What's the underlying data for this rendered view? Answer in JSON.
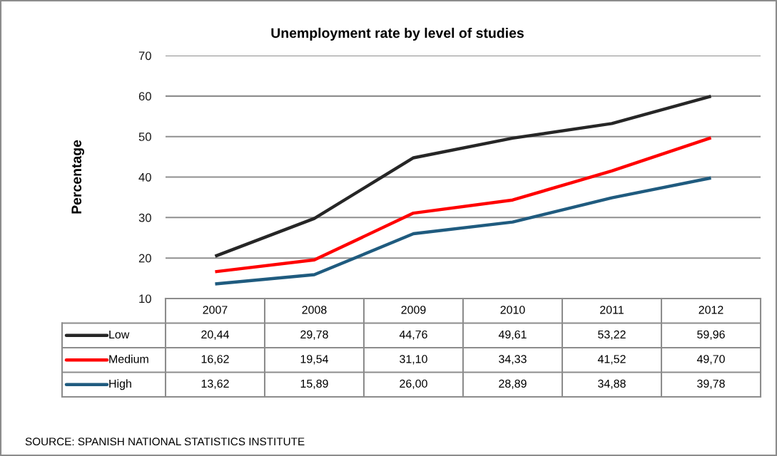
{
  "chart_data": {
    "type": "line",
    "title": "Unemployment rate by level of studies",
    "ylabel": "Percentage",
    "categories": [
      "2007",
      "2008",
      "2009",
      "2010",
      "2011",
      "2012"
    ],
    "series": [
      {
        "name": "Low",
        "color": "#262626",
        "values": [
          20.44,
          29.78,
          44.76,
          49.61,
          53.22,
          59.96
        ],
        "value_labels": [
          "20,44",
          "29,78",
          "44,76",
          "49,61",
          "53,22",
          "59,96"
        ]
      },
      {
        "name": "Medium",
        "color": "#ff0000",
        "values": [
          16.62,
          19.54,
          31.1,
          34.33,
          41.52,
          49.7
        ],
        "value_labels": [
          "16,62",
          "19,54",
          "31,10",
          "34,33",
          "41,52",
          "49,70"
        ]
      },
      {
        "name": "High",
        "color": "#1f5b7f",
        "values": [
          13.62,
          15.89,
          26.0,
          28.89,
          34.88,
          39.78
        ],
        "value_labels": [
          "13,62",
          "15,89",
          "26,00",
          "28,89",
          "34,88",
          "39,78"
        ]
      }
    ],
    "ylim": [
      10,
      70
    ],
    "yticks": [
      10,
      20,
      30,
      40,
      50,
      60,
      70
    ],
    "grid": "y",
    "legend": "bottom",
    "line_style": "solid",
    "annotations": [
      "SOURCE: SPANISH NATIONAL STATISTICS INSTITUTE"
    ]
  }
}
